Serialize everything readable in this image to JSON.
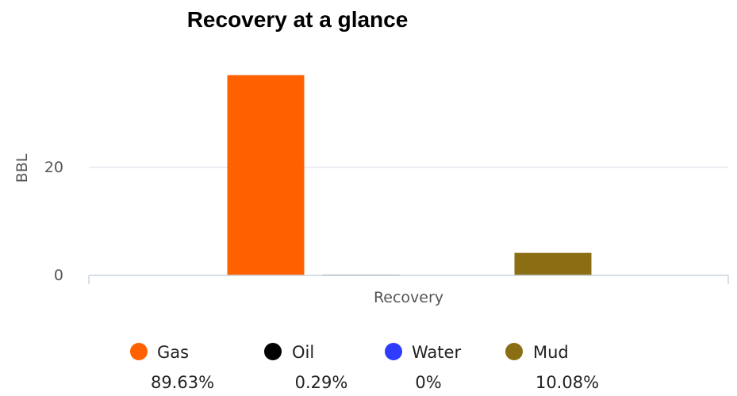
{
  "chart_data": {
    "type": "bar",
    "title": "Recovery at a glance",
    "xlabel": "Recovery",
    "ylabel": "BBL",
    "categories": [
      "Recovery"
    ],
    "series": [
      {
        "name": "Gas",
        "values": [
          37.1
        ],
        "percent": "89.63%",
        "color": "#ff6000"
      },
      {
        "name": "Oil",
        "values": [
          0.12
        ],
        "percent": "0.29%",
        "color": "#000000"
      },
      {
        "name": "Water",
        "values": [
          0
        ],
        "percent": "0%",
        "color": "#2f3cff"
      },
      {
        "name": "Mud",
        "values": [
          4.17
        ],
        "percent": "10.08%",
        "color": "#8b6d14"
      }
    ],
    "y_ticks": [
      0,
      20
    ],
    "ylim": [
      0,
      40
    ],
    "grid": true,
    "legend_position": "bottom"
  }
}
